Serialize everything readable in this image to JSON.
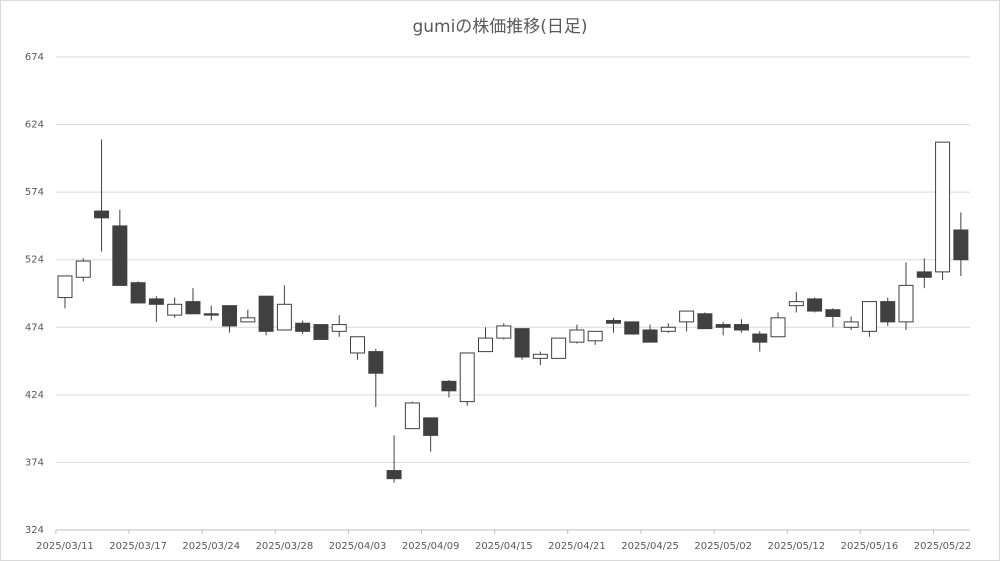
{
  "chart_data": {
    "type": "candlestick",
    "title": "gumiの株価推移(日足)",
    "categories": [
      "2025/03/11",
      null,
      null,
      null,
      "2025/03/17",
      null,
      null,
      null,
      "2025/03/24",
      null,
      null,
      null,
      "2025/03/28",
      null,
      null,
      null,
      "2025/04/03",
      null,
      null,
      null,
      "2025/04/09",
      null,
      null,
      null,
      "2025/04/15",
      null,
      null,
      null,
      "2025/04/21",
      null,
      null,
      null,
      "2025/04/25",
      null,
      null,
      null,
      "2025/05/02",
      null,
      null,
      null,
      "2025/05/12",
      null,
      null,
      null,
      "2025/05/16",
      null,
      null,
      null,
      "2025/05/22",
      null
    ],
    "open": [
      496,
      511,
      560,
      549,
      507,
      495,
      483,
      493,
      484,
      490,
      478,
      497,
      472,
      477,
      476,
      471,
      455,
      456,
      368,
      399,
      407,
      434,
      419,
      456,
      466,
      473,
      451,
      451,
      463,
      464,
      479,
      478,
      472,
      471,
      478,
      484,
      476,
      476,
      469,
      467,
      490,
      495,
      487,
      474,
      471,
      493,
      478,
      515,
      515,
      546
    ],
    "high": [
      512,
      525,
      613,
      561,
      508,
      497,
      496,
      503,
      490,
      490,
      487,
      497,
      505,
      479,
      476,
      483,
      467,
      458,
      394,
      419,
      407,
      435,
      455,
      474,
      477,
      473,
      456,
      466,
      476,
      471,
      481,
      478,
      476,
      477,
      486,
      485,
      478,
      480,
      471,
      485,
      500,
      496,
      488,
      482,
      493,
      496,
      522,
      525,
      611,
      559
    ],
    "low": [
      488,
      508,
      530,
      505,
      492,
      478,
      481,
      484,
      479,
      470,
      478,
      468,
      472,
      469,
      465,
      467,
      450,
      415,
      359,
      399,
      382,
      422,
      416,
      456,
      465,
      450,
      446,
      451,
      462,
      461,
      470,
      469,
      463,
      470,
      471,
      473,
      468,
      470,
      456,
      467,
      485,
      485,
      474,
      472,
      467,
      475,
      472,
      503,
      509,
      512
    ],
    "close": [
      512,
      523,
      555,
      505,
      492,
      491,
      491,
      484,
      483,
      475,
      481,
      471,
      491,
      471,
      465,
      476,
      467,
      440,
      362,
      418,
      394,
      427,
      455,
      466,
      475,
      452,
      454,
      466,
      472,
      471,
      477,
      469,
      463,
      474,
      486,
      473,
      474,
      472,
      463,
      481,
      493,
      486,
      482,
      478,
      493,
      478,
      505,
      511,
      611,
      524
    ],
    "up_color": "#ffffff",
    "down_color": "#404040",
    "edge_color": "#404040",
    "ylim": [
      324,
      674
    ],
    "yticks": [
      324,
      374,
      424,
      474,
      524,
      574,
      624,
      674
    ],
    "grid": true
  }
}
